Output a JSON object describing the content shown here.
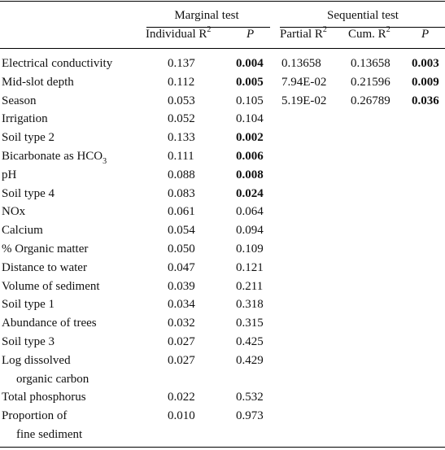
{
  "header": {
    "group_marginal": "Marginal test",
    "group_sequential": "Sequential test",
    "col_individual_r2": "Individual R",
    "col_marginal_p": "P",
    "col_partial_r2": "Partial R",
    "col_cum_r2": "Cum. R",
    "col_sequential_p": "P",
    "superscript": "2"
  },
  "rows": [
    {
      "label": "Electrical conductivity",
      "ind_r2": "0.137",
      "p": "0.004",
      "p_bold": true,
      "partial_r2": "0.13658",
      "cum_r2": "0.13658",
      "seq_p": "0.003"
    },
    {
      "label": "Mid-slot depth",
      "ind_r2": "0.112",
      "p": "0.005",
      "p_bold": true,
      "partial_r2": "7.94E-02",
      "cum_r2": "0.21596",
      "seq_p": "0.009"
    },
    {
      "label": "Season",
      "ind_r2": "0.053",
      "p": "0.105",
      "p_bold": false,
      "partial_r2": "5.19E-02",
      "cum_r2": "0.26789",
      "seq_p": "0.036"
    },
    {
      "label": "Irrigation",
      "ind_r2": "0.052",
      "p": "0.104",
      "p_bold": false
    },
    {
      "label": "Soil type 2",
      "ind_r2": "0.133",
      "p": "0.002",
      "p_bold": true
    },
    {
      "label": "Bicarbonate as HCO",
      "label_sub": "3",
      "ind_r2": "0.111",
      "p": "0.006",
      "p_bold": true
    },
    {
      "label": "pH",
      "ind_r2": "0.088",
      "p": "0.008",
      "p_bold": true
    },
    {
      "label": "Soil type 4",
      "ind_r2": "0.083",
      "p": "0.024",
      "p_bold": true
    },
    {
      "label": "NOx",
      "ind_r2": "0.061",
      "p": "0.064",
      "p_bold": false
    },
    {
      "label": "Calcium",
      "ind_r2": "0.054",
      "p": "0.094",
      "p_bold": false
    },
    {
      "label": "% Organic matter",
      "ind_r2": "0.050",
      "p": "0.109",
      "p_bold": false
    },
    {
      "label": "Distance to water",
      "ind_r2": "0.047",
      "p": "0.121",
      "p_bold": false
    },
    {
      "label": "Volume of sediment",
      "ind_r2": "0.039",
      "p": "0.211",
      "p_bold": false
    },
    {
      "label": "Soil type 1",
      "ind_r2": "0.034",
      "p": "0.318",
      "p_bold": false
    },
    {
      "label": "Abundance of trees",
      "ind_r2": "0.032",
      "p": "0.315",
      "p_bold": false
    },
    {
      "label": "Soil type 3",
      "ind_r2": "0.027",
      "p": "0.425",
      "p_bold": false
    },
    {
      "label": "Log dissolved",
      "label_line2": "organic carbon",
      "ind_r2": "0.027",
      "p": "0.429",
      "p_bold": false
    },
    {
      "label": "Total phosphorus",
      "ind_r2": "0.022",
      "p": "0.532",
      "p_bold": false
    },
    {
      "label": "Proportion of",
      "label_line2": "fine sediment",
      "ind_r2": "0.010",
      "p": "0.973",
      "p_bold": false
    }
  ]
}
